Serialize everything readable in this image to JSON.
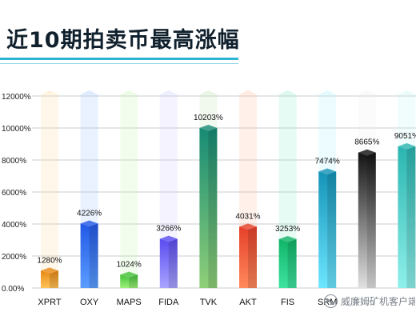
{
  "page": {
    "watermark": "威廉姆矿机客户端"
  },
  "chart_data": {
    "type": "bar",
    "title": "近10期拍卖币最高涨幅",
    "xlabel": "",
    "ylabel": "",
    "categories": [
      "XPRT",
      "OXY",
      "MAPS",
      "FIDA",
      "TVK",
      "AKT",
      "FIS",
      "SRM",
      "",
      ""
    ],
    "value_labels": [
      "1280%",
      "4226%",
      "1024%",
      "3266%",
      "10203%",
      "4031%",
      "3253%",
      "7474%",
      "8665%",
      "9051%"
    ],
    "values": [
      1280,
      4226,
      1024,
      3266,
      10203,
      4031,
      3253,
      7474,
      8665,
      9051
    ],
    "ylim": [
      0,
      12000
    ],
    "yticks": [
      0,
      2000,
      4000,
      6000,
      8000,
      10000,
      12000
    ],
    "ytick_labels": [
      "0.00%",
      "2000%",
      "4000%",
      "6000%",
      "8000%",
      "10000%",
      "12000%"
    ],
    "grid": true,
    "legend": "none",
    "colors": [
      {
        "light": "#ffc35a",
        "dark": "#e78a14"
      },
      {
        "light": "#5b9dff",
        "dark": "#2259e6"
      },
      {
        "light": "#9df07a",
        "dark": "#45c23a"
      },
      {
        "light": "#a9a4ff",
        "dark": "#5a4cf0"
      },
      {
        "light": "#8fcf78",
        "dark": "#178b75"
      },
      {
        "light": "#ff8a5c",
        "dark": "#e6402a"
      },
      {
        "light": "#3fe3a0",
        "dark": "#10b468"
      },
      {
        "light": "#6de6ff",
        "dark": "#1594b8"
      },
      {
        "light": "#e0e0e0",
        "dark": "#141414"
      },
      {
        "light": "#8ff0ea",
        "dark": "#2bb5b0"
      }
    ]
  }
}
